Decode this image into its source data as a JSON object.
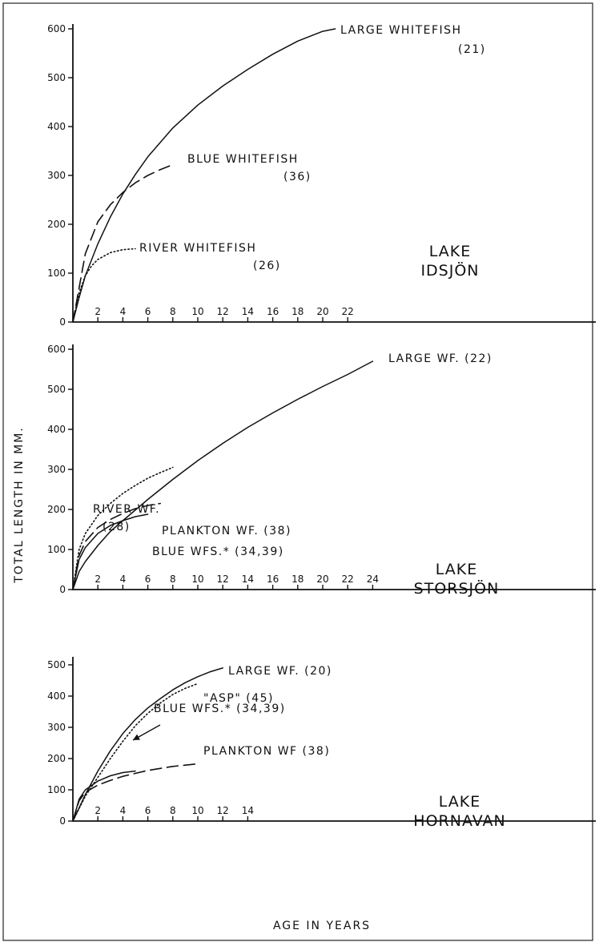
{
  "chart_data": [
    {
      "type": "line",
      "panel_label": [
        "LAKE",
        "IDSJÖN"
      ],
      "y_ticks": [
        "0",
        "100",
        "200",
        "300",
        "400",
        "500",
        "600"
      ],
      "x_ticks": [
        "2",
        "4",
        "6",
        "8",
        "10",
        "12",
        "14",
        "16",
        "18",
        "20",
        "22"
      ],
      "ylim": [
        0,
        600
      ],
      "xlim": [
        0,
        24
      ],
      "series": [
        {
          "name": "LARGE WHITEFISH (21)",
          "label_lines": [
            "LARGE WHITEFISH",
            "(21)"
          ],
          "style": "solid",
          "x": [
            0,
            0.5,
            1,
            2,
            3,
            4,
            5,
            6,
            8,
            10,
            12,
            14,
            16,
            18,
            20,
            21
          ],
          "y": [
            0,
            50,
            95,
            160,
            215,
            262,
            302,
            338,
            397,
            444,
            483,
            517,
            548,
            575,
            595,
            600
          ]
        },
        {
          "name": "BLUE WHITEFISH (36)",
          "label_lines": [
            "BLUE WHITEFISH",
            "(36)"
          ],
          "style": "dashed",
          "x": [
            0,
            1,
            2,
            3,
            4,
            5,
            6,
            7,
            8
          ],
          "y": [
            0,
            140,
            205,
            240,
            265,
            285,
            300,
            312,
            322
          ]
        },
        {
          "name": "RIVER WHITEFISH (26)",
          "label_lines": [
            "RIVER WHITEFISH",
            "(26)"
          ],
          "style": "dotted",
          "x": [
            0,
            0.5,
            1,
            1.5,
            2,
            3,
            4,
            5
          ],
          "y": [
            0,
            60,
            95,
            115,
            128,
            142,
            148,
            150
          ]
        }
      ]
    },
    {
      "type": "line",
      "panel_label": [
        "LAKE",
        "STORSJÖN"
      ],
      "y_ticks": [
        "0",
        "100",
        "200",
        "300",
        "400",
        "500",
        "600"
      ],
      "x_ticks": [
        "2",
        "4",
        "6",
        "8",
        "10",
        "12",
        "14",
        "16",
        "18",
        "20",
        "22",
        "24"
      ],
      "ylim": [
        0,
        600
      ],
      "xlim": [
        0,
        26
      ],
      "series": [
        {
          "name": "LARGE WF. (22)",
          "label_lines": [
            "LARGE WF. (22)"
          ],
          "style": "solid",
          "x": [
            0,
            0.5,
            1,
            2,
            3,
            4,
            6,
            8,
            10,
            12,
            14,
            16,
            18,
            20,
            22,
            24
          ],
          "y": [
            0,
            45,
            70,
            110,
            145,
            172,
            225,
            275,
            322,
            365,
            405,
            441,
            475,
            507,
            537,
            570
          ]
        },
        {
          "name": "RIVER WF. (28)",
          "label_lines": [
            "RIVER WF.",
            "(28)"
          ],
          "style": "dotted",
          "x": [
            0,
            0.5,
            1,
            2,
            3,
            4,
            5,
            6,
            7,
            8
          ],
          "y": [
            0,
            100,
            140,
            185,
            215,
            240,
            260,
            278,
            292,
            305
          ]
        },
        {
          "name": "PLANKTON WF. (38)",
          "label_lines": [
            "PLANKTON WF. (38)"
          ],
          "style": "dashed",
          "x": [
            0,
            0.5,
            1,
            2,
            3,
            4,
            5,
            6,
            7
          ],
          "y": [
            0,
            85,
            120,
            155,
            175,
            190,
            202,
            210,
            215
          ]
        },
        {
          "name": "BLUE WFS.* (34,39)",
          "label_lines": [
            "BLUE WFS.* (34,39)"
          ],
          "style": "solid",
          "x": [
            0,
            0.5,
            1,
            2,
            3,
            4,
            5,
            6
          ],
          "y": [
            0,
            75,
            105,
            140,
            160,
            172,
            182,
            188
          ]
        }
      ]
    },
    {
      "type": "line",
      "panel_label": [
        "LAKE",
        "HORNAVAN"
      ],
      "y_ticks": [
        "0",
        "100",
        "200",
        "300",
        "400",
        "500"
      ],
      "x_ticks": [
        "2",
        "4",
        "6",
        "8",
        "10",
        "12",
        "14"
      ],
      "ylim": [
        0,
        500
      ],
      "xlim": [
        0,
        26
      ],
      "series": [
        {
          "name": "LARGE WF. (20)",
          "label_lines": [
            "LARGE WF. (20)"
          ],
          "style": "solid",
          "x": [
            0,
            1,
            2,
            3,
            4,
            5,
            6,
            7,
            8,
            9,
            10,
            11,
            12
          ],
          "y": [
            0,
            85,
            160,
            225,
            280,
            325,
            362,
            392,
            420,
            443,
            462,
            478,
            490
          ]
        },
        {
          "name": "\"ASP\" (45)",
          "label_lines": [
            "\"ASP\" (45)"
          ],
          "style": "dotted",
          "x": [
            0,
            1,
            2,
            3,
            4,
            5,
            6,
            7,
            8,
            9,
            10
          ],
          "y": [
            0,
            80,
            140,
            200,
            255,
            305,
            345,
            378,
            405,
            425,
            440
          ]
        },
        {
          "name": "BLUE WFS.* (34,39)",
          "label_lines": [
            "BLUE WFS.* (34,39)"
          ],
          "style": "solid",
          "x": [
            0,
            0.5,
            1,
            2,
            3,
            4,
            5
          ],
          "y": [
            0,
            70,
            100,
            128,
            145,
            155,
            160
          ]
        },
        {
          "name": "PLANKTON WF (38)",
          "label_lines": [
            "PLANKTON WF (38)"
          ],
          "style": "dashed",
          "x": [
            0,
            0.5,
            1,
            2,
            3,
            4,
            6,
            8,
            10
          ],
          "y": [
            0,
            65,
            92,
            115,
            130,
            143,
            162,
            175,
            183
          ]
        }
      ]
    }
  ],
  "axes": {
    "ylabel": "TOTAL LENGTH IN MM.",
    "xlabel": "AGE IN YEARS"
  }
}
